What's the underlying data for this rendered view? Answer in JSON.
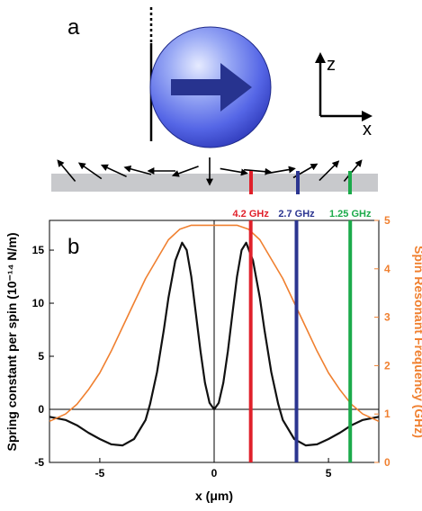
{
  "panels": {
    "a_label": "a",
    "b_label": "b"
  },
  "axes_glyph": {
    "z_label": "z",
    "x_label": "x"
  },
  "chart_data": {
    "type": "line",
    "xlabel": "x (μm)",
    "ylabel": "Spring constant per spin (10⁻¹⁴ N/m)",
    "y2label": "Spin Resonant Frequency (GHz)",
    "xlim": [
      -7.2,
      7.2
    ],
    "ylim": [
      -5,
      17.8
    ],
    "y2lim": [
      0,
      5
    ],
    "x_ticks": [
      -5,
      0,
      5
    ],
    "y_ticks": [
      -5,
      0,
      5,
      10,
      15
    ],
    "y2_ticks": [
      0,
      1,
      2,
      3,
      4,
      5
    ],
    "grid": false,
    "series": [
      {
        "axis": "left",
        "color": "#111111",
        "x": [
          -7.2,
          -6.5,
          -6.0,
          -5.5,
          -5.0,
          -4.5,
          -4.0,
          -3.5,
          -3.0,
          -2.8,
          -2.5,
          -2.2,
          -2.0,
          -1.7,
          -1.4,
          -1.2,
          -1.0,
          -0.8,
          -0.6,
          -0.4,
          -0.2,
          0.0,
          0.2,
          0.4,
          0.6,
          0.8,
          1.0,
          1.2,
          1.4,
          1.7,
          2.0,
          2.2,
          2.5,
          2.8,
          3.0,
          3.5,
          4.0,
          4.5,
          5.0,
          5.5,
          6.0,
          6.5,
          7.2
        ],
        "y": [
          -0.7,
          -1.0,
          -1.5,
          -2.2,
          -2.8,
          -3.3,
          -3.4,
          -2.8,
          -1.0,
          0.5,
          3.5,
          7.5,
          10.5,
          14.0,
          15.7,
          15.0,
          12.5,
          9.0,
          5.5,
          2.5,
          0.6,
          0.0,
          0.6,
          2.5,
          5.5,
          9.0,
          12.5,
          15.0,
          15.7,
          14.0,
          10.5,
          7.5,
          3.5,
          0.5,
          -1.0,
          -2.8,
          -3.4,
          -3.3,
          -2.8,
          -2.2,
          -1.5,
          -1.0,
          -0.7
        ]
      },
      {
        "axis": "right",
        "color": "#F08030",
        "x": [
          -7.2,
          -6.5,
          -6.0,
          -5.5,
          -5.0,
          -4.5,
          -4.0,
          -3.5,
          -3.0,
          -2.5,
          -2.0,
          -1.5,
          -1.0,
          -0.5,
          0.0,
          0.5,
          1.0,
          1.5,
          2.0,
          2.5,
          3.0,
          3.5,
          4.0,
          4.5,
          5.0,
          5.5,
          6.0,
          6.5,
          7.2
        ],
        "y": [
          0.85,
          1.0,
          1.2,
          1.5,
          1.85,
          2.3,
          2.8,
          3.3,
          3.8,
          4.2,
          4.6,
          4.82,
          4.9,
          4.9,
          4.9,
          4.9,
          4.9,
          4.82,
          4.6,
          4.2,
          3.8,
          3.3,
          2.8,
          2.3,
          1.85,
          1.5,
          1.2,
          1.0,
          0.85
        ]
      }
    ],
    "markers": [
      {
        "x": 1.6,
        "color": "#E0202A",
        "label": "4.2 GHz"
      },
      {
        "x": 3.6,
        "color": "#2B3590",
        "label": "2.7 GHz"
      },
      {
        "x": 5.95,
        "color": "#1BAA4A",
        "label": "1.25 GHz"
      }
    ]
  }
}
